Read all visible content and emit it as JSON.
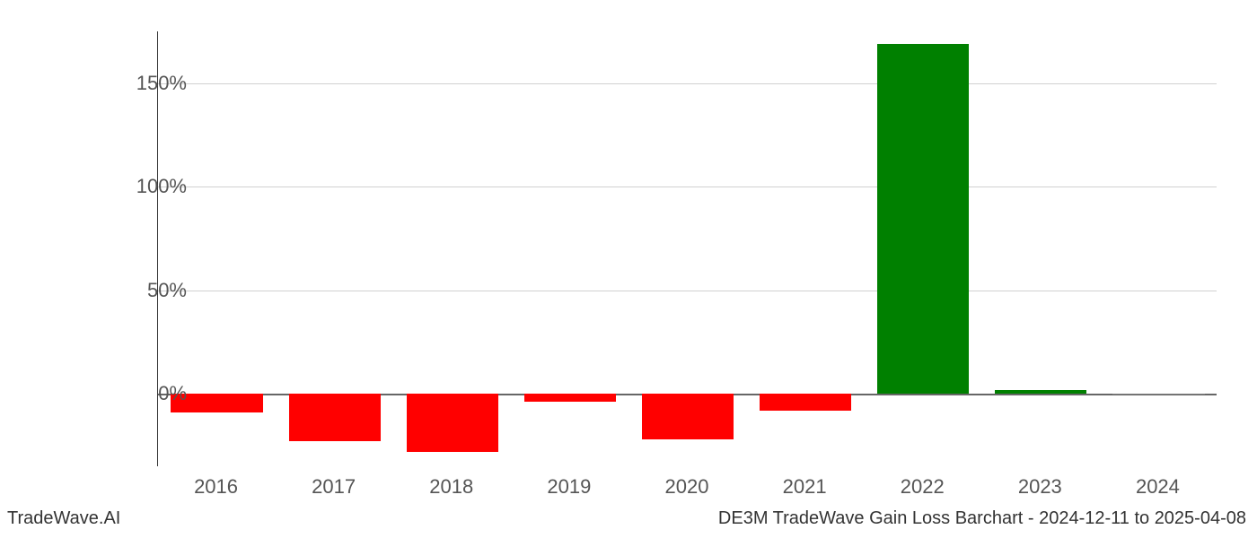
{
  "chart": {
    "type": "bar",
    "categories": [
      "2016",
      "2017",
      "2018",
      "2019",
      "2020",
      "2021",
      "2022",
      "2023",
      "2024"
    ],
    "values": [
      -9,
      -23,
      -28,
      -4,
      -22,
      -8,
      169,
      2,
      0
    ],
    "bar_colors": [
      "#ff0000",
      "#ff0000",
      "#ff0000",
      "#ff0000",
      "#ff0000",
      "#ff0000",
      "#008000",
      "#008000",
      "#808080"
    ],
    "ylim": [
      -35,
      175
    ],
    "yticks": [
      0,
      50,
      100,
      150
    ],
    "ytick_labels": [
      "0%",
      "50%",
      "100%",
      "150%"
    ],
    "bar_width_ratio": 0.78,
    "background_color": "#ffffff",
    "grid_color": "#d0d0d0",
    "axis_color": "#333333",
    "tick_label_color": "#555555",
    "tick_label_fontsize": 22
  },
  "footer": {
    "left": "TradeWave.AI",
    "right": "DE3M TradeWave Gain Loss Barchart - 2024-12-11 to 2025-04-08"
  }
}
